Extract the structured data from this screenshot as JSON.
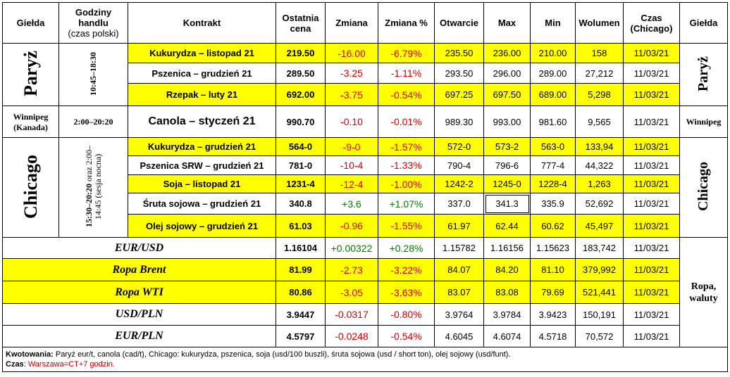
{
  "headers": {
    "gielda": "Giełda",
    "godziny": "Godziny handlu",
    "godziny_sub": "(czas polski)",
    "kontrakt": "Kontrakt",
    "ostatnia": "Ostatnia cena",
    "zmiana": "Zmiana",
    "zmiana_pct": "Zmiana %",
    "otwarcie": "Otwarcie",
    "max": "Max",
    "min": "Min",
    "wolumen": "Wolumen",
    "czas": "Czas (Chicago)",
    "gielda2": "Giełda"
  },
  "paris": {
    "exchange": "Paryż",
    "hours": "10:45–18:30",
    "rows": [
      {
        "contract": "Kukurydza – listopad 21",
        "last": "219.50",
        "chg": "-16.00",
        "pct": "-6.79%",
        "open": "235.50",
        "max": "236.00",
        "min": "210.00",
        "vol": "158",
        "time": "11/03/21"
      },
      {
        "contract": "Pszenica – grudzień 21",
        "last": "289.50",
        "chg": "-3.25",
        "pct": "-1.11%",
        "open": "293.50",
        "max": "296.00",
        "min": "289.00",
        "vol": "27,212",
        "time": "11/03/21"
      },
      {
        "contract": "Rzepak – luty 21",
        "last": "692.00",
        "chg": "-3.75",
        "pct": "-0.54%",
        "open": "697.25",
        "max": "697.50",
        "min": "689.00",
        "vol": "5,298",
        "time": "11/03/21"
      }
    ]
  },
  "winnipeg": {
    "exchange": "Winnipeg",
    "country": "(Kanada)",
    "hours": "2:00–20:20",
    "exchange_right": "Winnipeg",
    "row": {
      "contract": "Canola – styczeń 21",
      "last": "990.70",
      "chg": "-0.10",
      "pct": "-0.01%",
      "open": "989.30",
      "max": "993.00",
      "min": "981.60",
      "vol": "9,565",
      "time": "11/03/21"
    }
  },
  "chicago": {
    "exchange": "Chicago",
    "hours_main": "15:30–20:20",
    "hours_rest": "oraz 2:00–14:45 (sesja nocna)",
    "rows": [
      {
        "contract": "Kukurydza – grudzień 21",
        "last": "564-0",
        "chg": "-9-0",
        "pct": "-1.57%",
        "open": "572-0",
        "max": "573-2",
        "min": "563-0",
        "vol": "133,94",
        "time": "11/03/21"
      },
      {
        "contract": "Pszenica SRW – grudzień 21",
        "last": "781-0",
        "chg": "-10-4",
        "pct": "-1.33%",
        "open": "790-4",
        "max": "796-6",
        "min": "777-4",
        "vol": "44,322",
        "time": "11/03/21"
      },
      {
        "contract": "Soja – listopad 21",
        "last": "1231-4",
        "chg": "-12-4",
        "pct": "-1.00%",
        "open": "1242-2",
        "max": "1245-0",
        "min": "1228-4",
        "vol": "1,263",
        "time": "11/03/21"
      },
      {
        "contract": "Śruta sojowa – grudzień 21",
        "last": "340.8",
        "chg": "+3.6",
        "pct": "+1.07%",
        "open": "337.0",
        "max": "341.3",
        "min": "335.9",
        "vol": "52,692",
        "time": "11/03/21"
      },
      {
        "contract": "Olej sojowy – grudzień 21",
        "last": "61.03",
        "chg": "-0.96",
        "pct": "-1.55%",
        "open": "61.97",
        "max": "62.44",
        "min": "60.62",
        "vol": "45,497",
        "time": "11/03/21"
      }
    ]
  },
  "other": {
    "group_label": "Ropa, waluty",
    "rows": [
      {
        "contract": "EUR/USD",
        "last": "1.16104",
        "chg": "+0.00322",
        "pct": "+0.28%",
        "open": "1.15782",
        "max": "1.16156",
        "min": "1.15623",
        "vol": "183,742",
        "time": "11/03/21"
      },
      {
        "contract": "Ropa Brent",
        "last": "81.99",
        "chg": "-2.73",
        "pct": "-3.22%",
        "open": "84.07",
        "max": "84.20",
        "min": "81.10",
        "vol": "379,992",
        "time": "11/03/21"
      },
      {
        "contract": "Ropa WTI",
        "last": "80.86",
        "chg": "-3.05",
        "pct": "-3.63%",
        "open": "83.07",
        "max": "83.08",
        "min": "79.69",
        "vol": "521,441",
        "time": "11/03/21"
      },
      {
        "contract": "USD/PLN",
        "last": "3.9447",
        "chg": "-0.0317",
        "pct": "-0.80%",
        "open": "3.9764",
        "max": "3.9784",
        "min": "3.9423",
        "vol": "150,191",
        "time": "11/03/21"
      },
      {
        "contract": "EUR/PLN",
        "last": "4.5797",
        "chg": "-0.0248",
        "pct": "-0.54%",
        "open": "4.6045",
        "max": "4.6074",
        "min": "4.5718",
        "vol": "70,572",
        "time": "11/03/21"
      }
    ]
  },
  "footer": {
    "kwot_label": "Kwotowania:",
    "kwot_text": " Paryż eur/t, canola (cad/t), Chicago: kukurydza, pszenica, soja (usd/100 buszli), śruta sojowa (usd / short ton), olej sojowy (usd/funt).",
    "czas_label": "Czas",
    "czas_sep": ": ",
    "czas_text": "Warszawa=CT+7 godzin."
  },
  "colors": {
    "highlight": "#ffff00",
    "negative": "#e00000",
    "positive": "#008000"
  }
}
